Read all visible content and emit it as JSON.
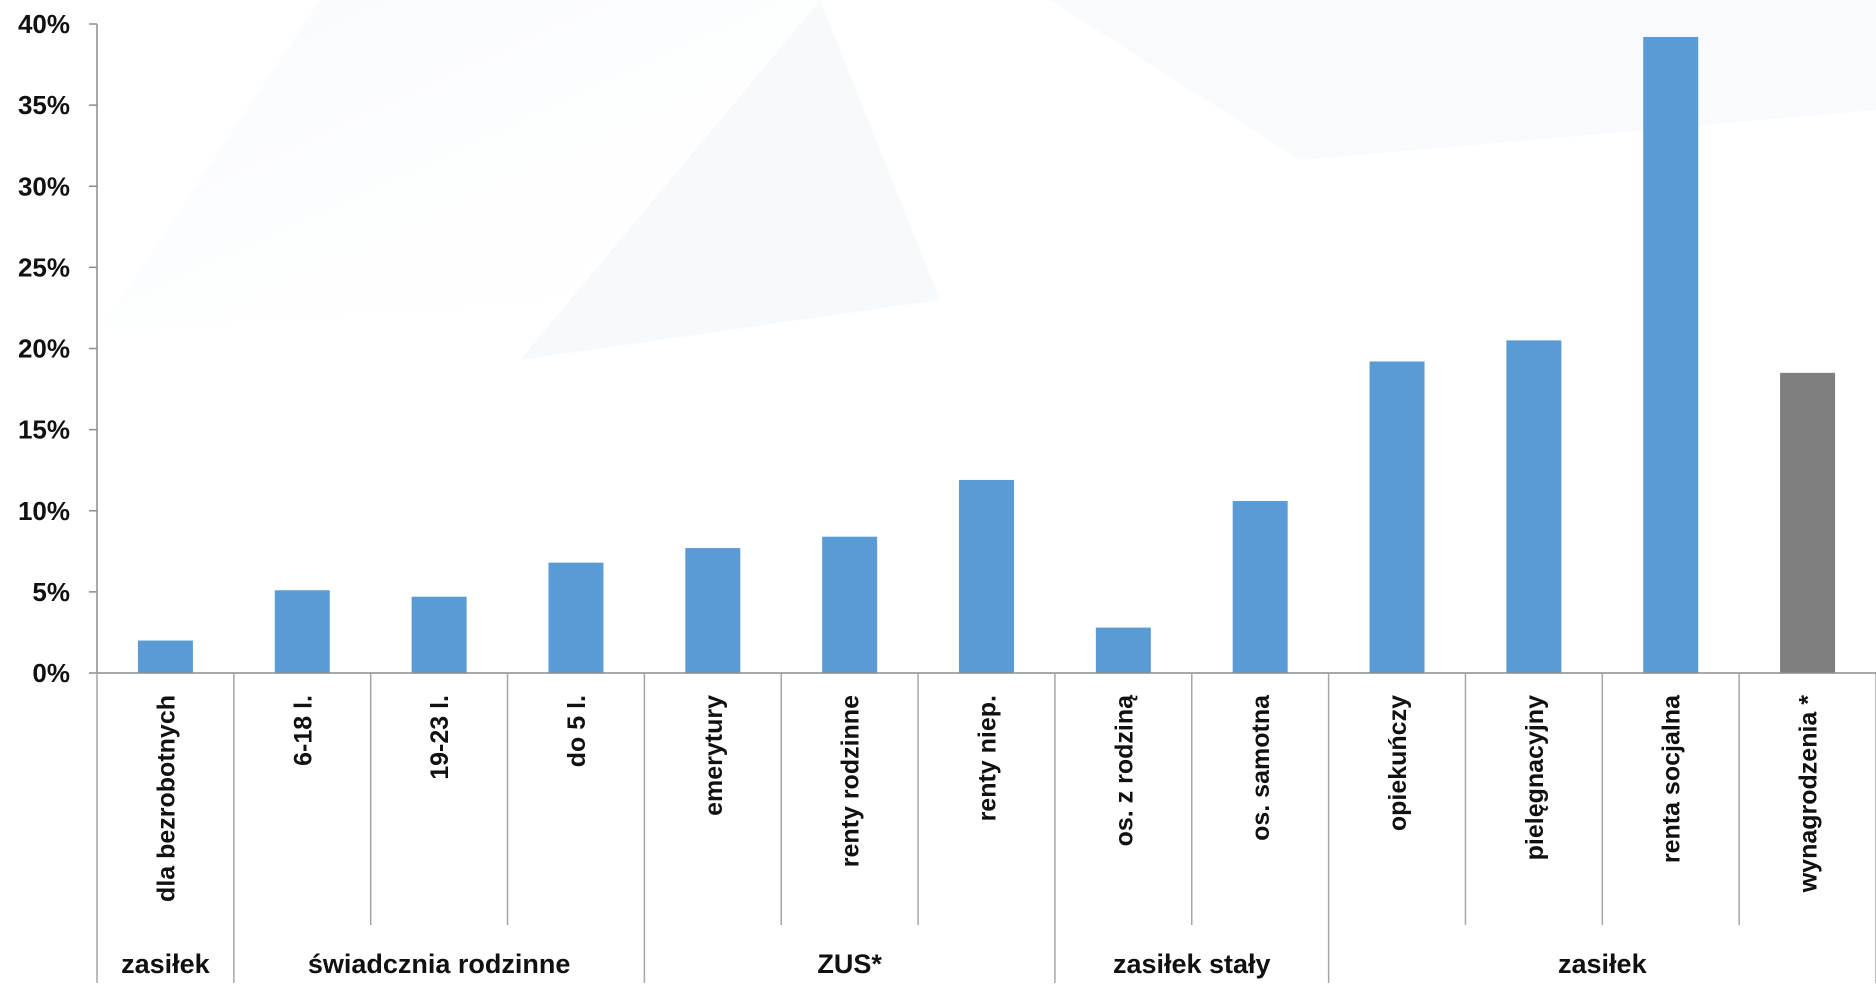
{
  "chart_data": {
    "type": "bar",
    "title": "",
    "xlabel": "",
    "ylabel": "",
    "ylim": [
      0,
      40
    ],
    "y_ticks": [
      "0%",
      "5%",
      "10%",
      "15%",
      "20%",
      "25%",
      "30%",
      "35%",
      "40%"
    ],
    "grid": false,
    "legend": "none",
    "categories": [
      "dla bezrobotnych",
      "6-18 l.",
      "19-23 l.",
      "do 5 l.",
      "emerytury",
      "renty rodzinne",
      "renty niep.",
      "os. z rodziną",
      "os. samotna",
      "opiekuńczy",
      "pielęgnacyjny",
      "renta socjalna",
      "wynagrodzenia *"
    ],
    "values": [
      2.0,
      5.1,
      4.7,
      6.8,
      7.7,
      8.4,
      11.9,
      2.8,
      10.6,
      19.2,
      20.5,
      39.2,
      18.5
    ],
    "bar_colors": [
      "#5b9bd5",
      "#5b9bd5",
      "#5b9bd5",
      "#5b9bd5",
      "#5b9bd5",
      "#5b9bd5",
      "#5b9bd5",
      "#5b9bd5",
      "#5b9bd5",
      "#5b9bd5",
      "#5b9bd5",
      "#5b9bd5",
      "#7f7f7f"
    ],
    "groups": [
      {
        "label": "zasiłek",
        "start": 0,
        "end": 0
      },
      {
        "label": "świadcznia rodzinne",
        "start": 1,
        "end": 3
      },
      {
        "label": "ZUS*",
        "start": 4,
        "end": 6
      },
      {
        "label": "zasiłek stały",
        "start": 7,
        "end": 8
      },
      {
        "label": "zasiłek",
        "start": 9,
        "end": 12
      }
    ]
  }
}
